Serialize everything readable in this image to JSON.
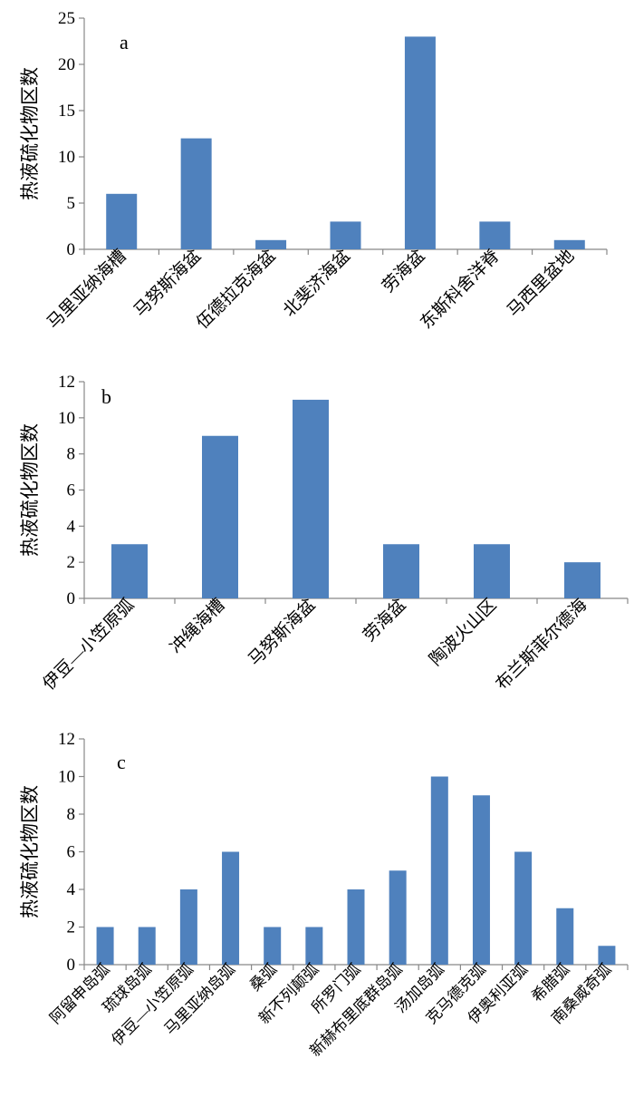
{
  "chart_data": [
    {
      "type": "bar",
      "panel_label": "a",
      "ylabel": "热液硫化物区数",
      "categories": [
        "马里亚纳海槽",
        "马努斯海盆",
        "伍德拉克海盆",
        "北斐济海盆",
        "劳海盆",
        "东斯科舍洋脊",
        "马西里盆地"
      ],
      "values": [
        6,
        12,
        1,
        3,
        23,
        3,
        1
      ],
      "ylim": [
        0,
        25
      ],
      "yticks": [
        0,
        5,
        10,
        15,
        20,
        25
      ],
      "grid": false,
      "bar_color": "#4f81bd"
    },
    {
      "type": "bar",
      "panel_label": "b",
      "ylabel": "热液硫化物区数",
      "categories": [
        "伊豆—小笠原弧",
        "冲绳海槽",
        "马努斯海盆",
        "劳海盆",
        "陶波火山区",
        "布兰斯菲尔德海"
      ],
      "values": [
        3,
        9,
        11,
        3,
        3,
        2
      ],
      "ylim": [
        0,
        12
      ],
      "yticks": [
        0,
        2,
        4,
        6,
        8,
        10,
        12
      ],
      "grid": false,
      "bar_color": "#4f81bd"
    },
    {
      "type": "bar",
      "panel_label": "c",
      "ylabel": "热液硫化物区数",
      "categories": [
        "阿留申岛弧",
        "琉球岛弧",
        "伊豆—小笠原弧",
        "马里亚纳岛弧",
        "桑弧",
        "新不列颠弧",
        "所罗门弧",
        "新赫布里底群岛弧",
        "汤加岛弧",
        "克马德克弧",
        "伊奥利亚弧",
        "希腊弧",
        "南桑威奇弧"
      ],
      "values": [
        2,
        2,
        4,
        6,
        2,
        2,
        4,
        5,
        10,
        9,
        6,
        3,
        1
      ],
      "ylim": [
        0,
        12
      ],
      "yticks": [
        0,
        2,
        4,
        6,
        8,
        10,
        12
      ],
      "grid": false,
      "bar_color": "#4f81bd"
    }
  ]
}
